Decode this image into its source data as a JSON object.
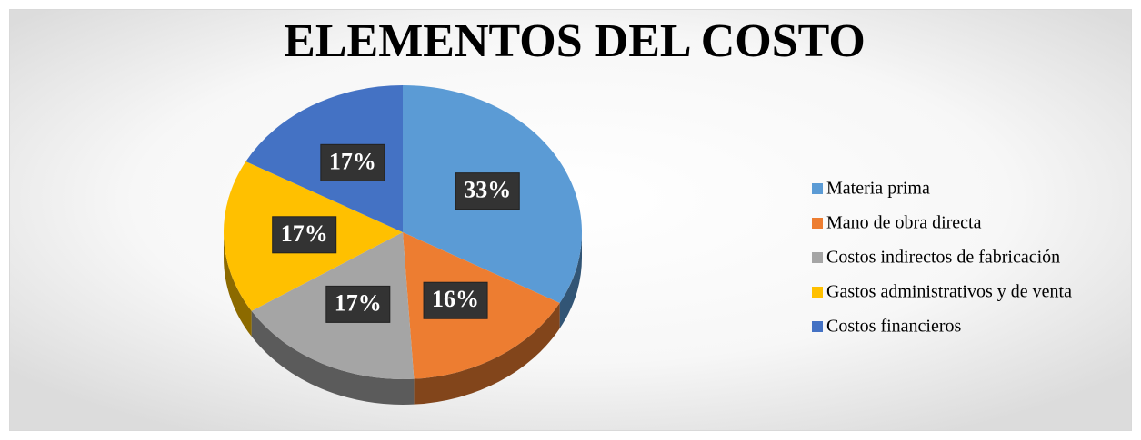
{
  "chart_data": {
    "type": "pie",
    "title": "ELEMENTOS DEL COSTO",
    "categories": [
      "Materia prima",
      "Mano de obra directa",
      "Costos indirectos de fabricación",
      "Gastos administrativos y de venta",
      "Costos financieros"
    ],
    "values": [
      33,
      16,
      17,
      17,
      17
    ],
    "value_labels": [
      "33%",
      "16%",
      "17%",
      "17%",
      "17%"
    ],
    "colors": [
      "#5b9bd5",
      "#ed7d31",
      "#a5a5a5",
      "#ffc000",
      "#4472c4"
    ],
    "legend": "right"
  }
}
